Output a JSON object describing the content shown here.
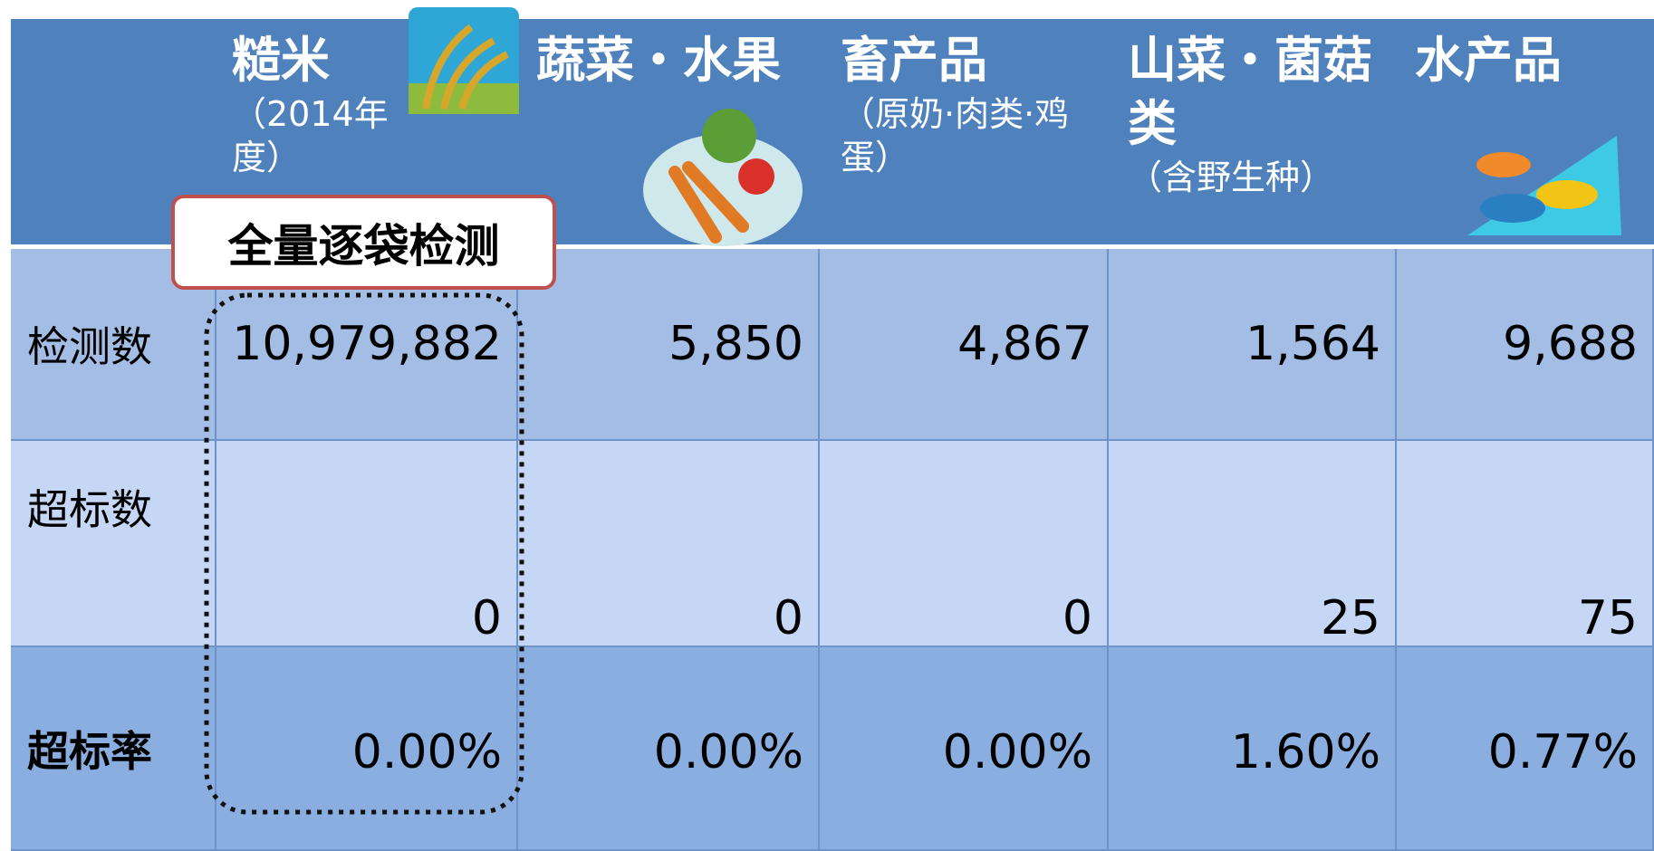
{
  "header": {
    "columns": [
      {
        "title": "糙米",
        "subtitle": "（2014年度）"
      },
      {
        "title": "蔬菜・水果"
      },
      {
        "title": "畜产品",
        "subtitle": "（原奶·肉类·鸡蛋）"
      },
      {
        "title": "山菜・菌菇类",
        "subtitle": "（含野生种）"
      },
      {
        "title": "水产品"
      }
    ]
  },
  "table": {
    "rows": [
      {
        "label": "检测数",
        "cells": [
          "10,979,882",
          "5,850",
          "4,867",
          "1,564",
          "9,688"
        ]
      },
      {
        "label": "超标数",
        "cells": [
          "0",
          "0",
          "0",
          "25",
          "75"
        ]
      },
      {
        "label": "超标率",
        "cells": [
          "0.00%",
          "0.00%",
          "0.00%",
          "1.60%",
          "0.77%"
        ]
      }
    ]
  },
  "callout": "全量逐袋检测"
}
